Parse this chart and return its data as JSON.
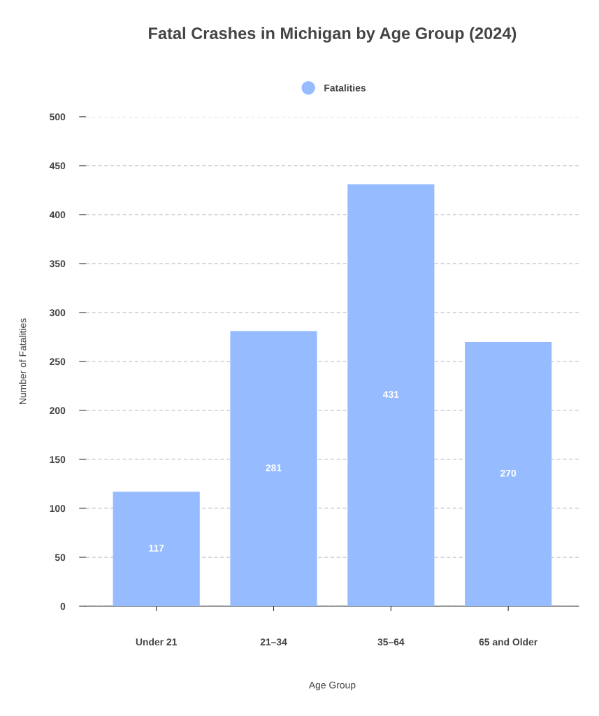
{
  "chart_data": {
    "type": "bar",
    "title": "Fatal Crashes in Michigan by Age Group (2024)",
    "xlabel": "Age Group",
    "ylabel": "Number of Fatalities",
    "categories": [
      "Under 21",
      "21–34",
      "35–64",
      "65 and Older"
    ],
    "series": [
      {
        "name": "Fatalities",
        "color": "#96bcff",
        "values": [
          117,
          281,
          431,
          270
        ]
      }
    ],
    "ylim": [
      0,
      500
    ],
    "yticks": [
      0,
      50,
      100,
      150,
      200,
      250,
      300,
      350,
      400,
      450,
      500
    ],
    "grid": "y",
    "legend": "top",
    "data_labels": true,
    "marker": "circle"
  }
}
